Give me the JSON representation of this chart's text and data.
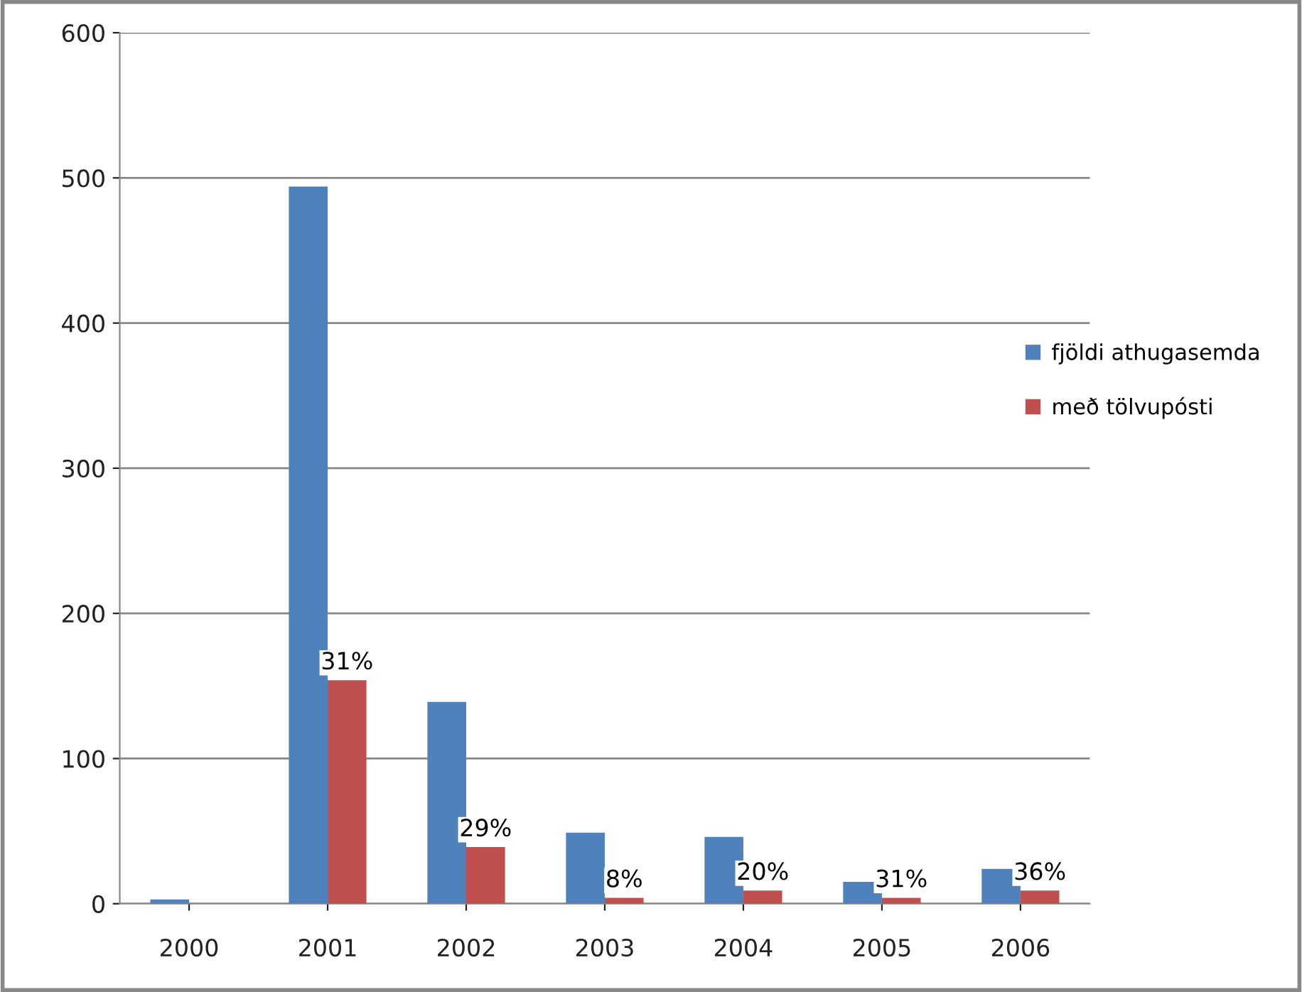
{
  "chart_data": {
    "type": "bar",
    "categories": [
      "2000",
      "2001",
      "2002",
      "2003",
      "2004",
      "2005",
      "2006"
    ],
    "series": [
      {
        "name": "fjöldi athugasemda",
        "color": "#4f81bd",
        "values": [
          3,
          494,
          139,
          49,
          46,
          15,
          24
        ]
      },
      {
        "name": "með tölvupósti",
        "color": "#c0504d",
        "values": [
          0,
          154,
          39,
          4,
          9,
          4,
          9
        ]
      }
    ],
    "annotations": [
      {
        "text": "31%",
        "x": "2001",
        "y": 154
      },
      {
        "text": "29%",
        "x": "2002",
        "y": 39
      },
      {
        "text": "8%",
        "x": "2003",
        "y": 4
      },
      {
        "text": "20%",
        "x": "2004",
        "y": 9
      },
      {
        "text": "31%",
        "x": "2005",
        "y": 4
      },
      {
        "text": "36%",
        "x": "2006",
        "y": 9
      }
    ],
    "ylim": [
      0,
      600
    ],
    "yticks": [
      0,
      100,
      200,
      300,
      400,
      500,
      600
    ],
    "grid": "y",
    "legend": "right"
  }
}
